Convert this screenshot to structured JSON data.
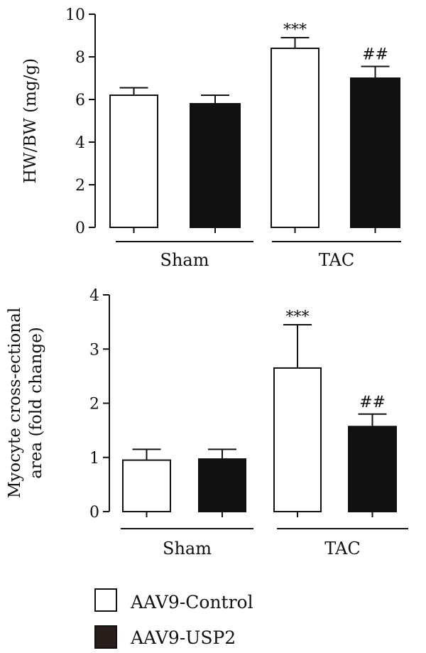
{
  "chart_data": [
    {
      "type": "bar",
      "ylabel": "HW/BW (mg/g)",
      "ylim": [
        0,
        10
      ],
      "yticks": [
        0,
        2,
        4,
        6,
        8,
        10
      ],
      "groups": [
        "Sham",
        "TAC"
      ],
      "series": [
        {
          "name": "AAV9-Control",
          "color": "#ffffff",
          "values": [
            6.2,
            8.4
          ],
          "errors": [
            0.35,
            0.5
          ]
        },
        {
          "name": "AAV9-USP2",
          "color": "#111111",
          "values": [
            5.8,
            7.0
          ],
          "errors": [
            0.4,
            0.55
          ]
        }
      ],
      "annotations": [
        {
          "group": 1,
          "series": 0,
          "text": "***"
        },
        {
          "group": 1,
          "series": 1,
          "text": "##"
        }
      ]
    },
    {
      "type": "bar",
      "ylabel_lines": [
        "Myocyte cross-ectional",
        "area (fold change)"
      ],
      "ylim": [
        0,
        4
      ],
      "yticks": [
        0,
        1,
        2,
        3,
        4
      ],
      "groups": [
        "Sham",
        "TAC"
      ],
      "series": [
        {
          "name": "AAV9-Control",
          "color": "#ffffff",
          "values": [
            0.95,
            2.65
          ],
          "errors": [
            0.2,
            0.8
          ]
        },
        {
          "name": "AAV9-USP2",
          "color": "#111111",
          "values": [
            0.97,
            1.57
          ],
          "errors": [
            0.18,
            0.23
          ]
        }
      ],
      "annotations": [
        {
          "group": 1,
          "series": 0,
          "text": "***"
        },
        {
          "group": 1,
          "series": 1,
          "text": "##"
        }
      ]
    }
  ],
  "legend": {
    "items": [
      {
        "label": "AAV9-Control",
        "color": "#ffffff"
      },
      {
        "label": "AAV9-USP2",
        "color": "#2a1e1c"
      }
    ]
  }
}
